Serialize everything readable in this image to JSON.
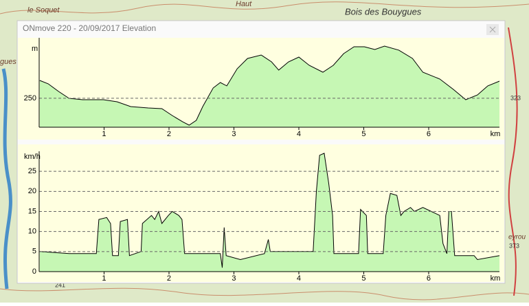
{
  "window": {
    "title": "ONmove 220 - 20/09/2017 Elevation"
  },
  "map": {
    "labels": [
      "le Soquet",
      "Haut",
      "Bois des Bouygues",
      "gues",
      "323",
      "373",
      "241",
      "eyrou"
    ]
  },
  "chart_data": [
    {
      "type": "area",
      "ylabel": "m",
      "xlabel": "km",
      "color": "#c6f7b4",
      "line_color": "#000000",
      "xlim": [
        0,
        7.09
      ],
      "xticks": [
        1,
        2,
        3,
        4,
        5,
        6
      ],
      "ylim": [
        215,
        323
      ],
      "yticks": [
        250
      ],
      "grid": "dashed",
      "x": [
        0.01,
        0.14,
        0.3,
        0.46,
        0.67,
        0.99,
        1.2,
        1.41,
        1.68,
        1.89,
        2.05,
        2.21,
        2.31,
        2.42,
        2.52,
        2.68,
        2.79,
        2.89,
        3.05,
        3.21,
        3.42,
        3.58,
        3.69,
        3.84,
        4.0,
        4.16,
        4.37,
        4.53,
        4.69,
        4.85,
        5.01,
        5.17,
        5.32,
        5.54,
        5.75,
        5.91,
        6.17,
        6.38,
        6.57,
        6.75,
        6.91,
        7.09
      ],
      "values": [
        271.5,
        267.4,
        258.2,
        249.9,
        248.2,
        248.2,
        245.7,
        239.9,
        238.3,
        237.4,
        229.1,
        221.6,
        217.5,
        223.3,
        239.9,
        262.4,
        269.0,
        264.9,
        285.6,
        298.1,
        302.2,
        293.9,
        284.0,
        293.9,
        299.7,
        289.8,
        281.5,
        289.8,
        303.9,
        312.2,
        312.2,
        308.9,
        313.0,
        308.1,
        298.1,
        281.5,
        273.2,
        260.7,
        248.2,
        254.0,
        264.9,
        270.7
      ]
    },
    {
      "type": "area",
      "ylabel": "km/h",
      "xlabel": "km",
      "color": "#c6f7b4",
      "line_color": "#000000",
      "xlim": [
        0,
        7.09
      ],
      "xticks": [
        1,
        2,
        3,
        4,
        5,
        6
      ],
      "ylim": [
        0,
        30
      ],
      "yticks": [
        0,
        5,
        10,
        15,
        20,
        25
      ],
      "grid": "dashed",
      "x": [
        0.01,
        0.46,
        0.88,
        0.92,
        1.04,
        1.1,
        1.13,
        1.22,
        1.25,
        1.36,
        1.39,
        1.57,
        1.59,
        1.73,
        1.78,
        1.84,
        1.89,
        1.99,
        2.05,
        2.15,
        2.2,
        2.24,
        2.79,
        2.82,
        2.85,
        2.88,
        3.1,
        3.47,
        3.53,
        3.56,
        4.05,
        4.22,
        4.27,
        4.32,
        4.39,
        4.46,
        4.52,
        4.54,
        4.92,
        4.95,
        5.04,
        5.06,
        5.3,
        5.34,
        5.41,
        5.51,
        5.57,
        5.62,
        5.72,
        5.78,
        5.91,
        6.04,
        6.17,
        6.22,
        6.28,
        6.31,
        6.35,
        6.4,
        6.7,
        6.75,
        7.09
      ],
      "values": [
        5,
        4.5,
        4.5,
        13,
        13.5,
        12,
        4,
        4,
        12.5,
        13,
        4,
        5,
        12,
        14,
        13,
        15,
        12,
        14,
        15,
        14,
        13,
        4.5,
        4.5,
        1,
        11,
        4,
        3,
        4.5,
        8,
        5,
        5,
        5,
        20,
        29,
        29.5,
        22,
        14,
        4.5,
        4.5,
        15.5,
        14,
        4.5,
        4.5,
        14,
        19.5,
        19,
        14,
        15,
        16,
        15,
        16,
        15,
        14,
        7,
        4.5,
        15,
        15,
        4,
        4,
        3,
        4
      ]
    }
  ]
}
